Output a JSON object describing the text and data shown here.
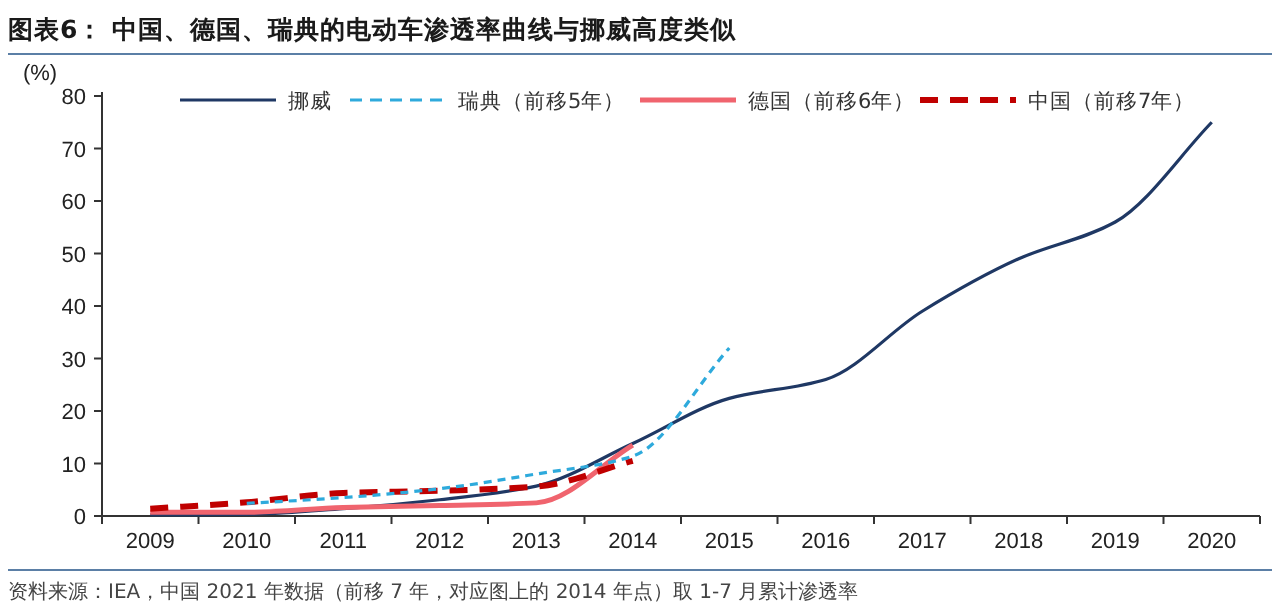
{
  "chart_data": {
    "type": "line",
    "title": "图表6：  中国、德国、瑞典的电动车渗透率曲线与挪威高度类似",
    "ylabel": "(%)",
    "categories": [
      "2009",
      "2010",
      "2011",
      "2012",
      "2013",
      "2014",
      "2015",
      "2016",
      "2017",
      "2018",
      "2019",
      "2020"
    ],
    "ylim": [
      0,
      80
    ],
    "yticks": [
      0,
      10,
      20,
      30,
      40,
      50,
      60,
      70,
      80
    ],
    "legend": "top",
    "series": [
      {
        "name": "挪威",
        "color": "#1f3864",
        "line_style": "solid",
        "values": [
          0.2,
          0.3,
          1.4,
          3.1,
          5.7,
          13.8,
          22.4,
          26,
          39,
          49,
          56,
          75
        ]
      },
      {
        "name": "瑞典（前移5年）",
        "color": "#2eaadc",
        "line_style": "dashed",
        "values": [
          null,
          2.4,
          3.5,
          5.2,
          8,
          11.4,
          32,
          null,
          null,
          null,
          null,
          null
        ]
      },
      {
        "name": "德国（前移6年）",
        "color": "#f0646e",
        "line_style": "solid",
        "values": [
          0.7,
          0.7,
          1.6,
          2,
          2.5,
          13.5,
          null,
          null,
          null,
          null,
          null,
          null
        ]
      },
      {
        "name": "中国（前移7年）",
        "color": "#c00000",
        "line_style": "dashed",
        "values": [
          1.4,
          2.6,
          4.4,
          4.8,
          5.6,
          10.5,
          null,
          null,
          null,
          null,
          null,
          null
        ]
      }
    ],
    "annotations": [
      "资料来源：IEA，中国 2021 年数据（前移 7 年，对应图上的 2014 年点）取 1-7 月累计渗透率"
    ]
  }
}
